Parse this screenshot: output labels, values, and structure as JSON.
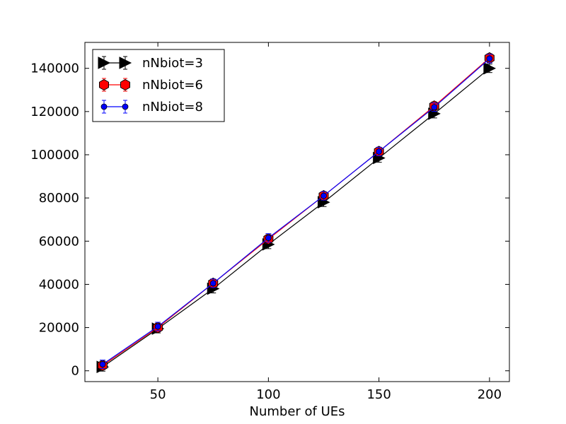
{
  "chart_data": {
    "type": "line",
    "title": "",
    "xlabel": "Number of UEs",
    "ylabel": "",
    "xlim": [
      17,
      209
    ],
    "ylim": [
      -5000,
      152000
    ],
    "x_ticks": [
      50,
      100,
      150,
      200
    ],
    "y_ticks": [
      0,
      20000,
      40000,
      60000,
      80000,
      100000,
      120000,
      140000
    ],
    "grid": false,
    "legend_position": "top-left",
    "series": [
      {
        "name": "nNbiot=3",
        "color": "#000000",
        "marker": "triangle-right",
        "x": [
          25,
          50,
          75,
          100,
          125,
          150,
          175,
          200
        ],
        "values": [
          1800,
          19500,
          38000,
          58500,
          78000,
          98500,
          119000,
          140000
        ]
      },
      {
        "name": "nNbiot=6",
        "color": "#ff0000",
        "marker": "hexagon",
        "x": [
          25,
          50,
          75,
          100,
          125,
          150,
          175,
          200
        ],
        "values": [
          2500,
          20000,
          40500,
          61000,
          81000,
          101500,
          122500,
          144800
        ]
      },
      {
        "name": "nNbiot=8",
        "color": "#0000ff",
        "marker": "circle",
        "x": [
          25,
          50,
          75,
          100,
          125,
          150,
          175,
          200
        ],
        "values": [
          3000,
          20500,
          40500,
          61500,
          81000,
          101500,
          122000,
          144500
        ]
      }
    ]
  }
}
